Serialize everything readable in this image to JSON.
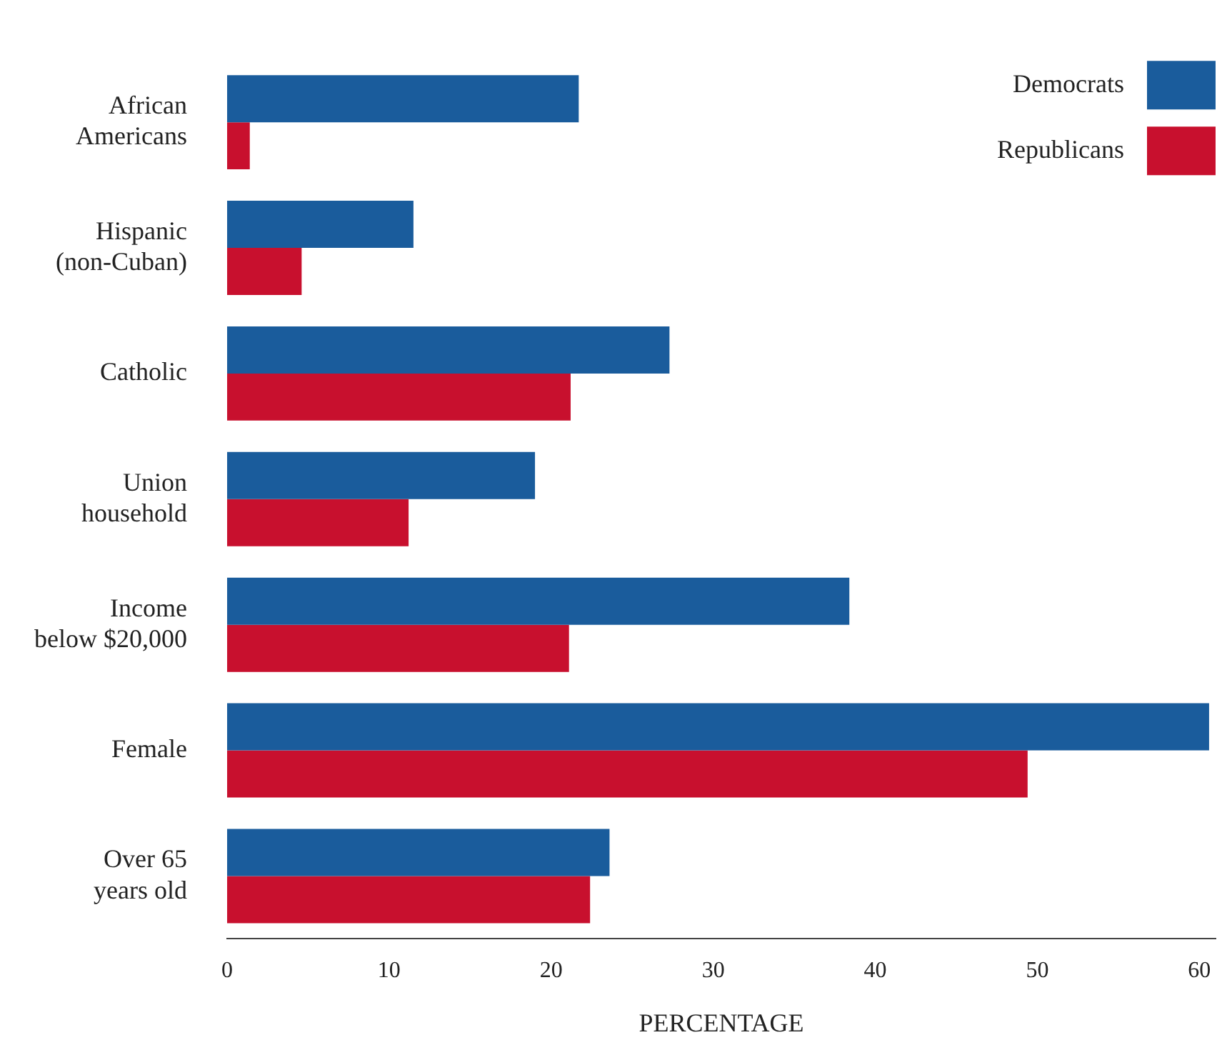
{
  "chart_data": {
    "type": "bar",
    "orientation": "horizontal",
    "xlabel": "PERCENTAGE",
    "categories": [
      "African Americans",
      "Hispanic (non-Cuban)",
      "Catholic",
      "Union household",
      "Income below $20,000",
      "Female",
      "Over 65 years old"
    ],
    "series": [
      {
        "name": "Democrats",
        "color": "#1a5c9c",
        "values": [
          21.7,
          11.5,
          27.3,
          19.0,
          38.4,
          60.6,
          23.6
        ]
      },
      {
        "name": "Republicans",
        "color": "#c8102e",
        "values": [
          1.4,
          4.6,
          21.2,
          11.2,
          21.1,
          49.4,
          22.4
        ]
      }
    ],
    "xlim": [
      0,
      61
    ],
    "xticks": [
      0,
      10,
      20,
      30,
      40,
      50,
      60
    ],
    "grid": false,
    "legend": "top right"
  }
}
